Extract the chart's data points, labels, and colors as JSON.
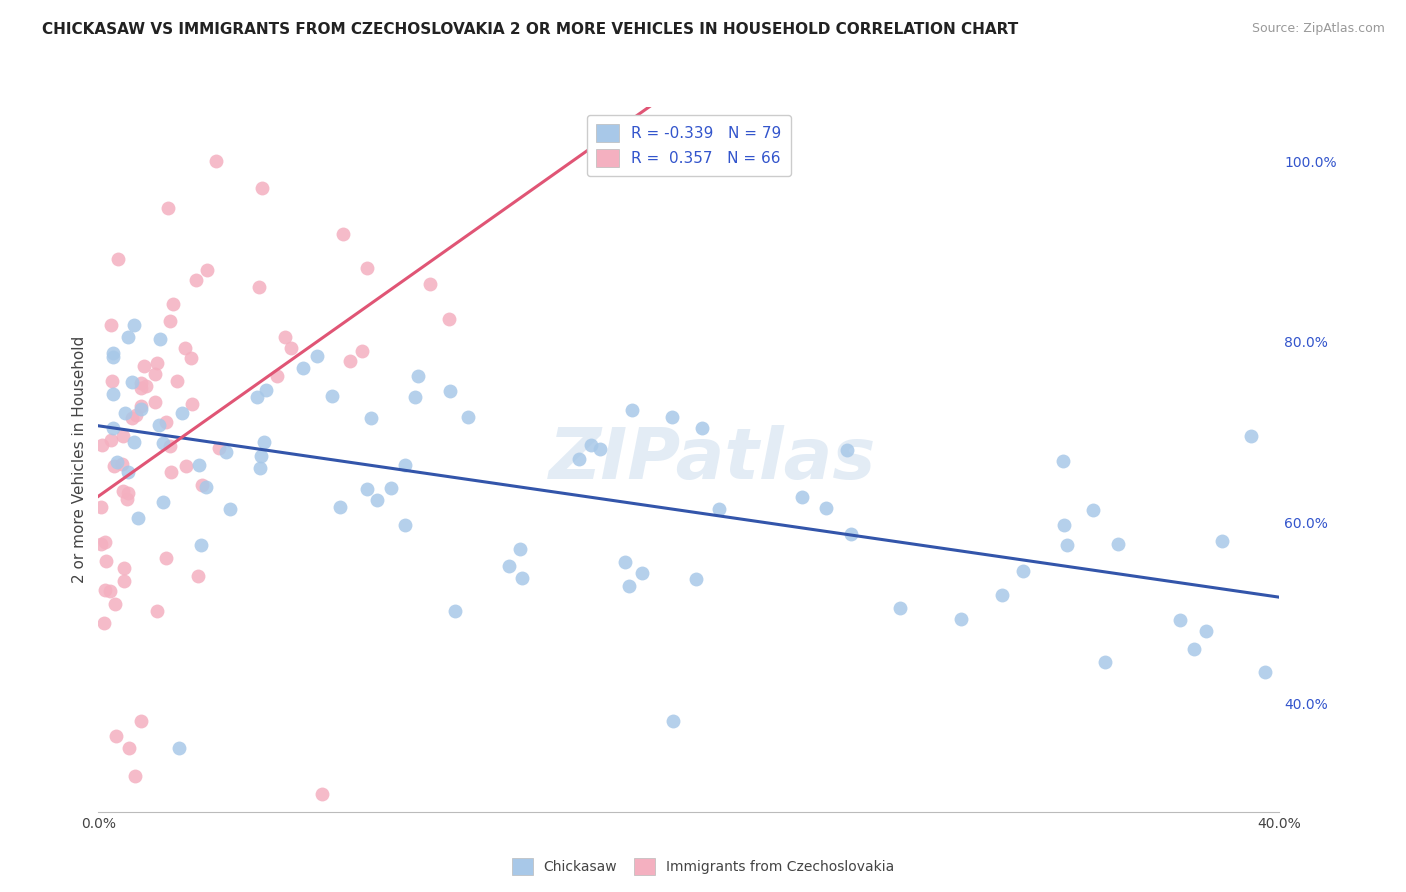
{
  "title": "CHICKASAW VS IMMIGRANTS FROM CZECHOSLOVAKIA 2 OR MORE VEHICLES IN HOUSEHOLD CORRELATION CHART",
  "source": "Source: ZipAtlas.com",
  "ylabel": "2 or more Vehicles in Household",
  "xlim": [
    0.0,
    0.4
  ],
  "ylim": [
    0.28,
    1.06
  ],
  "xticks": [
    0.0,
    0.05,
    0.1,
    0.15,
    0.2,
    0.25,
    0.3,
    0.35,
    0.4
  ],
  "xticklabels": [
    "0.0%",
    "",
    "",
    "",
    "",
    "",
    "",
    "",
    "40.0%"
  ],
  "yticks_right": [
    0.4,
    0.6,
    0.8,
    1.0
  ],
  "yticklabels_right": [
    "40.0%",
    "60.0%",
    "80.0%",
    "100.0%"
  ],
  "series": [
    {
      "name": "Chickasaw",
      "color": "#a8c8e8",
      "R": -0.339,
      "N": 79,
      "trend_color": "#3355aa",
      "trend_style": "solid"
    },
    {
      "name": "Immigrants from Czechoslovakia",
      "color": "#f4b0c0",
      "R": 0.357,
      "N": 66,
      "trend_color": "#e05575",
      "trend_style": "solid"
    }
  ],
  "watermark": "ZIPatlas",
  "background_color": "#ffffff",
  "grid_color": "#dddddd",
  "legend_R_color": "#3355cc"
}
